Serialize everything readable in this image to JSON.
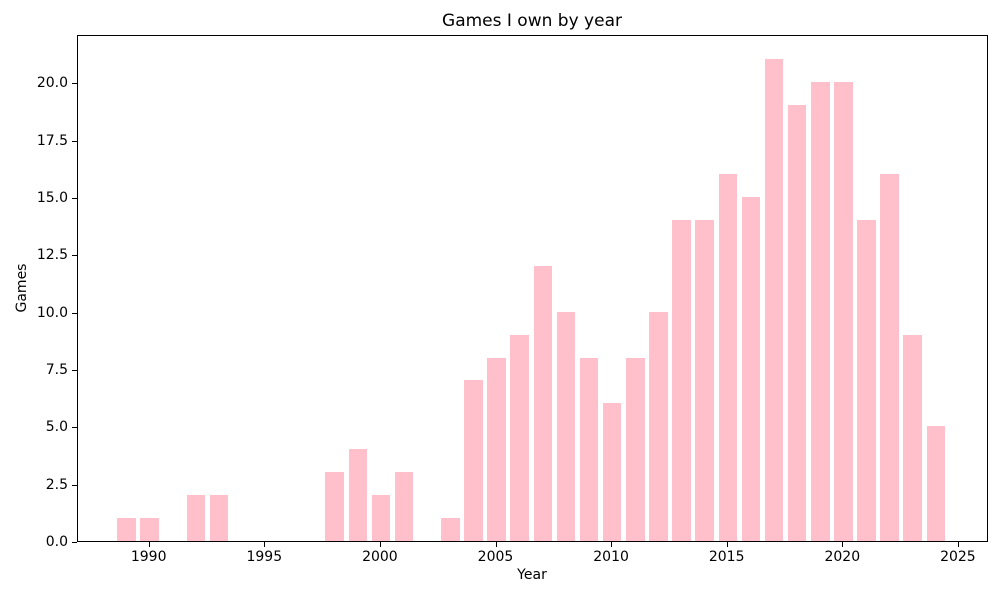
{
  "chart_data": {
    "type": "bar",
    "title": "Games I own by year",
    "xlabel": "Year",
    "ylabel": "Games",
    "bar_color": "#ffc0cb",
    "bar_width": 0.8,
    "grid": false,
    "legend": "none",
    "categories": [
      1989,
      1990,
      1991,
      1992,
      1993,
      1994,
      1995,
      1996,
      1997,
      1998,
      1999,
      2000,
      2001,
      2002,
      2003,
      2004,
      2005,
      2006,
      2007,
      2008,
      2009,
      2010,
      2011,
      2012,
      2013,
      2014,
      2015,
      2016,
      2017,
      2018,
      2019,
      2020,
      2021,
      2022,
      2023,
      2024
    ],
    "values": [
      1,
      1,
      0,
      2,
      2,
      0,
      0,
      0,
      0,
      3,
      4,
      2,
      3,
      0,
      1,
      7,
      8,
      9,
      12,
      10,
      8,
      6,
      8,
      10,
      14,
      14,
      16,
      15,
      21,
      19,
      20,
      20,
      14,
      16,
      9,
      5
    ],
    "x_ticks": [
      "1990",
      "1995",
      "2000",
      "2005",
      "2010",
      "2015",
      "2020",
      "2025"
    ],
    "y_ticks": [
      "0.0",
      "2.5",
      "5.0",
      "7.5",
      "10.0",
      "12.5",
      "15.0",
      "17.5",
      "20.0"
    ],
    "xlim": [
      1986.9,
      2026.3
    ],
    "ylim": [
      0,
      22.1
    ]
  }
}
